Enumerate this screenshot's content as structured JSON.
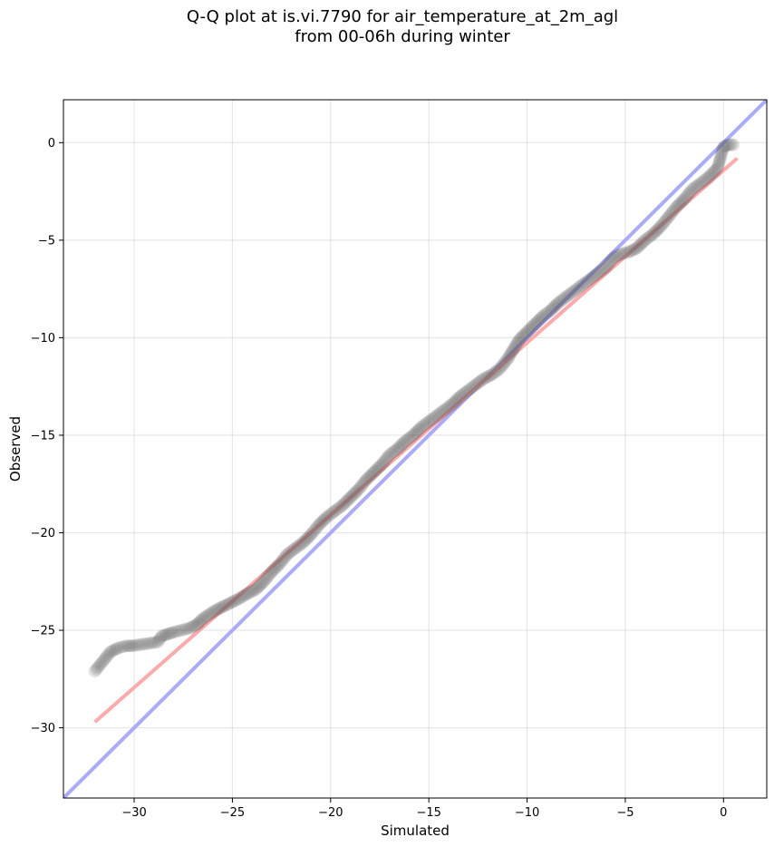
{
  "chart_data": {
    "type": "scatter",
    "title_line1": "Q-Q plot at is.vi.7790 for air_temperature_at_2m_agl",
    "title_line2": "from 00-06h during winter",
    "xlabel": "Simulated",
    "ylabel": "Observed",
    "xlim": [
      -33.6,
      2.2
    ],
    "ylim": [
      -33.6,
      2.2
    ],
    "xticks": [
      -30,
      -25,
      -20,
      -15,
      -10,
      -5,
      0
    ],
    "yticks": [
      0,
      -5,
      -10,
      -15,
      -20,
      -25,
      -30
    ],
    "xtick_labels": [
      "−30",
      "−25",
      "−20",
      "−15",
      "−10",
      "−5",
      "0"
    ],
    "ytick_labels": [
      "0",
      "−5",
      "−10",
      "−15",
      "−20",
      "−25",
      "−30"
    ],
    "grid": true,
    "identity_line": {
      "color": "#aaaaff"
    },
    "fit_line": {
      "color": "#ffaaaa",
      "x_range": [
        -32.0,
        0.7
      ],
      "y_range": [
        -29.7,
        -0.8
      ]
    },
    "points_color": "#555555",
    "quantiles": [
      [
        -32.0,
        -27.1
      ],
      [
        -31.2,
        -26.1
      ],
      [
        -30.8,
        -25.9
      ],
      [
        -30.4,
        -25.8
      ],
      [
        -30.1,
        -25.8
      ],
      [
        -28.8,
        -25.6
      ],
      [
        -28.6,
        -25.3
      ],
      [
        -28.3,
        -25.2
      ],
      [
        -28.0,
        -25.1
      ],
      [
        -27.6,
        -25.0
      ],
      [
        -27.2,
        -24.9
      ],
      [
        -26.8,
        -24.7
      ],
      [
        -26.5,
        -24.4
      ],
      [
        -26.2,
        -24.2
      ],
      [
        -25.9,
        -24.0
      ],
      [
        -25.5,
        -23.8
      ],
      [
        -25.1,
        -23.6
      ],
      [
        -24.7,
        -23.4
      ],
      [
        -24.2,
        -23.1
      ],
      [
        -23.8,
        -22.9
      ],
      [
        -23.4,
        -22.5
      ],
      [
        -23.0,
        -22.0
      ],
      [
        -22.6,
        -21.6
      ],
      [
        -22.2,
        -21.1
      ],
      [
        -21.8,
        -20.8
      ],
      [
        -21.4,
        -20.5
      ],
      [
        -21.0,
        -20.1
      ],
      [
        -20.6,
        -19.6
      ],
      [
        -20.2,
        -19.2
      ],
      [
        -19.8,
        -18.9
      ],
      [
        -19.4,
        -18.6
      ],
      [
        -19.0,
        -18.2
      ],
      [
        -18.6,
        -17.8
      ],
      [
        -18.2,
        -17.3
      ],
      [
        -17.8,
        -16.9
      ],
      [
        -17.4,
        -16.5
      ],
      [
        -17.0,
        -16.0
      ],
      [
        -16.6,
        -15.7
      ],
      [
        -16.2,
        -15.3
      ],
      [
        -15.8,
        -15.0
      ],
      [
        -15.4,
        -14.6
      ],
      [
        -15.0,
        -14.3
      ],
      [
        -14.6,
        -14.0
      ],
      [
        -14.2,
        -13.7
      ],
      [
        -13.8,
        -13.4
      ],
      [
        -13.4,
        -13.0
      ],
      [
        -13.0,
        -12.7
      ],
      [
        -12.6,
        -12.4
      ],
      [
        -12.2,
        -12.1
      ],
      [
        -11.8,
        -11.9
      ],
      [
        -11.4,
        -11.6
      ],
      [
        -11.0,
        -11.1
      ],
      [
        -10.7,
        -10.6
      ],
      [
        -10.4,
        -10.1
      ],
      [
        -10.0,
        -9.7
      ],
      [
        -9.6,
        -9.3
      ],
      [
        -9.2,
        -8.9
      ],
      [
        -8.8,
        -8.6
      ],
      [
        -8.4,
        -8.2
      ],
      [
        -8.0,
        -7.9
      ],
      [
        -7.6,
        -7.6
      ],
      [
        -7.2,
        -7.3
      ],
      [
        -6.8,
        -7.0
      ],
      [
        -6.4,
        -6.7
      ],
      [
        -6.0,
        -6.4
      ],
      [
        -5.6,
        -5.9
      ],
      [
        -5.2,
        -5.7
      ],
      [
        -4.8,
        -5.6
      ],
      [
        -4.4,
        -5.4
      ],
      [
        -4.0,
        -5.0
      ],
      [
        -3.6,
        -4.7
      ],
      [
        -3.2,
        -4.3
      ],
      [
        -2.8,
        -3.8
      ],
      [
        -2.4,
        -3.3
      ],
      [
        -2.0,
        -2.9
      ],
      [
        -1.6,
        -2.4
      ],
      [
        -1.2,
        -2.1
      ],
      [
        -0.8,
        -1.8
      ],
      [
        -0.3,
        -1.3
      ],
      [
        0.0,
        -0.2
      ],
      [
        0.3,
        -0.1
      ],
      [
        0.5,
        -0.1
      ]
    ]
  }
}
